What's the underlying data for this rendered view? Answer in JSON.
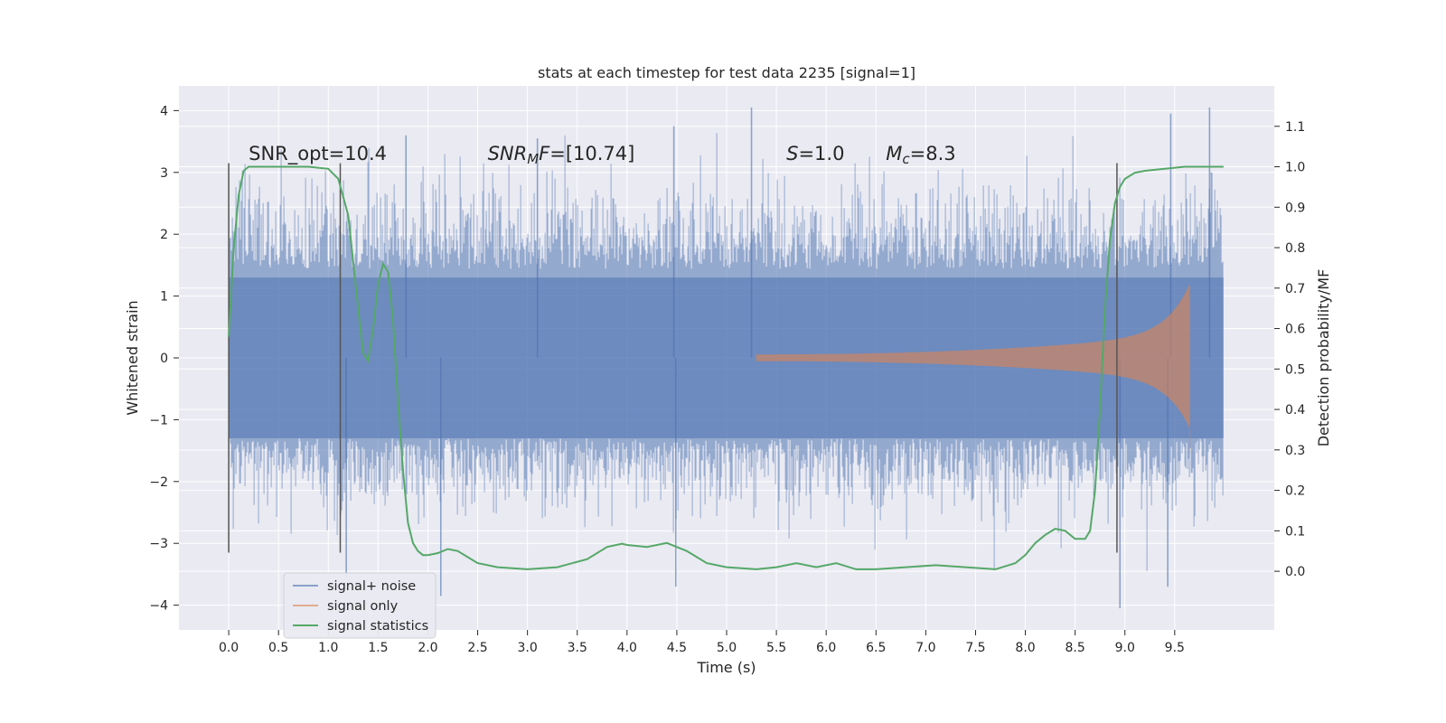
{
  "chart_data": {
    "type": "line",
    "title": "stats at each timestep for test data 2235 [signal=1]",
    "xlabel": "Time (s)",
    "ylabel": "Whitened strain",
    "ylabel_right": "Detection probability/MF",
    "xlim": [
      -0.5,
      10.5
    ],
    "ylim": [
      -4.4,
      4.4
    ],
    "ylim_right": [
      -0.145,
      1.2
    ],
    "x_ticks": [
      0.0,
      0.5,
      1.0,
      1.5,
      2.0,
      2.5,
      3.0,
      3.5,
      4.0,
      4.5,
      5.0,
      5.5,
      6.0,
      6.5,
      7.0,
      7.5,
      8.0,
      8.5,
      9.0,
      9.5
    ],
    "x_tick_labels": [
      "0.0",
      "0.5",
      "1.0",
      "1.5",
      "2.0",
      "2.5",
      "3.0",
      "3.5",
      "4.0",
      "4.5",
      "5.0",
      "5.5",
      "6.0",
      "6.5",
      "7.0",
      "7.5",
      "8.0",
      "8.5",
      "9.0",
      "9.5"
    ],
    "y_ticks": [
      4,
      3,
      2,
      1,
      0,
      -1,
      -2,
      -3,
      -4
    ],
    "y_tick_labels": [
      "4",
      "3",
      "2",
      "1",
      "0",
      "−1",
      "−2",
      "−3",
      "−4"
    ],
    "y_right_ticks": [
      1.1,
      1.0,
      0.9,
      0.8,
      0.7,
      0.6,
      0.5,
      0.4,
      0.3,
      0.2,
      0.1,
      0.0
    ],
    "y_right_tick_labels": [
      "1.1",
      "1.0",
      "0.9",
      "0.8",
      "0.7",
      "0.6",
      "0.5",
      "0.4",
      "0.3",
      "0.2",
      "0.1",
      "0.0"
    ],
    "grid": true,
    "legend_placement": "lower-left",
    "colors": {
      "signal_noise": "#4c72b0",
      "signal_only": "#dd8452",
      "statistics": "#55a868",
      "background": "#eaeaf2",
      "grid": "#ffffff",
      "vlines": "#555555"
    },
    "series": [
      {
        "name": "signal+ noise",
        "axis": "left",
        "style": "dense-noise",
        "x_range": [
          0.0,
          9.99
        ],
        "typical_envelope": [
          -1.8,
          2.0
        ],
        "peaks": [
          {
            "x": 1.18,
            "y": -3.55
          },
          {
            "x": 1.78,
            "y": 3.6
          },
          {
            "x": 2.13,
            "y": -3.85
          },
          {
            "x": 3.1,
            "y": 3.55
          },
          {
            "x": 4.47,
            "y": 3.75
          },
          {
            "x": 4.49,
            "y": -3.7
          },
          {
            "x": 5.25,
            "y": 4.05
          },
          {
            "x": 8.95,
            "y": -4.05
          },
          {
            "x": 9.43,
            "y": -3.7
          },
          {
            "x": 9.46,
            "y": 3.95
          },
          {
            "x": 9.85,
            "y": 4.05
          }
        ]
      },
      {
        "name": "signal only",
        "axis": "left",
        "style": "chirp",
        "x_range": [
          5.3,
          9.65
        ],
        "amplitude_end": 1.2
      },
      {
        "name": "signal statistics",
        "axis": "right",
        "x": [
          0.0,
          0.05,
          0.1,
          0.15,
          0.2,
          0.3,
          0.5,
          0.8,
          1.0,
          1.1,
          1.2,
          1.3,
          1.35,
          1.4,
          1.45,
          1.5,
          1.55,
          1.6,
          1.65,
          1.7,
          1.75,
          1.8,
          1.85,
          1.9,
          1.95,
          2.0,
          2.1,
          2.2,
          2.3,
          2.4,
          2.5,
          2.7,
          3.0,
          3.3,
          3.6,
          3.8,
          3.95,
          4.0,
          4.2,
          4.4,
          4.6,
          4.8,
          5.0,
          5.3,
          5.5,
          5.7,
          5.9,
          6.1,
          6.3,
          6.5,
          6.8,
          7.1,
          7.4,
          7.7,
          7.9,
          8.0,
          8.1,
          8.2,
          8.3,
          8.4,
          8.5,
          8.6,
          8.65,
          8.7,
          8.75,
          8.8,
          8.85,
          8.9,
          8.95,
          9.0,
          9.1,
          9.2,
          9.4,
          9.6,
          9.99
        ],
        "values": [
          0.58,
          0.8,
          0.93,
          0.99,
          1.0,
          1.0,
          1.0,
          1.0,
          0.995,
          0.97,
          0.88,
          0.65,
          0.54,
          0.52,
          0.6,
          0.71,
          0.76,
          0.74,
          0.62,
          0.42,
          0.25,
          0.12,
          0.07,
          0.05,
          0.04,
          0.04,
          0.045,
          0.055,
          0.05,
          0.035,
          0.02,
          0.01,
          0.005,
          0.01,
          0.03,
          0.06,
          0.068,
          0.065,
          0.06,
          0.07,
          0.05,
          0.02,
          0.01,
          0.005,
          0.01,
          0.02,
          0.01,
          0.02,
          0.005,
          0.005,
          0.01,
          0.015,
          0.01,
          0.005,
          0.02,
          0.04,
          0.07,
          0.09,
          0.105,
          0.1,
          0.08,
          0.08,
          0.1,
          0.2,
          0.4,
          0.65,
          0.82,
          0.91,
          0.95,
          0.97,
          0.985,
          0.99,
          0.995,
          1.0,
          1.0
        ]
      }
    ],
    "vlines": [
      {
        "x": 0.0,
        "y_range": [
          -3.15,
          3.15
        ]
      },
      {
        "x": 1.12,
        "y_range": [
          -3.15,
          3.15
        ]
      },
      {
        "x": 8.92,
        "y_range": [
          -3.15,
          3.15
        ]
      }
    ],
    "annotations": [
      {
        "text": "SNR_opt=10.4",
        "x": 0.2,
        "y": 3.2
      },
      {
        "text_parts": [
          {
            "t": "SNR",
            "i": true
          },
          {
            "t": "M",
            "i": true,
            "sub": true
          },
          {
            "t": "F",
            "i": true
          },
          {
            "t": "=[10.74]"
          }
        ],
        "x": 2.6,
        "y": 3.2
      },
      {
        "text_parts": [
          {
            "t": "S",
            "i": true
          },
          {
            "t": "=1.0"
          }
        ],
        "x": 5.6,
        "y": 3.2
      },
      {
        "text_parts": [
          {
            "t": "M",
            "i": true
          },
          {
            "t": "c",
            "i": true,
            "sub": true
          },
          {
            "t": "=8.3"
          }
        ],
        "x": 6.6,
        "y": 3.2
      }
    ],
    "legend": [
      "signal+ noise",
      "signal only",
      "signal statistics"
    ]
  }
}
